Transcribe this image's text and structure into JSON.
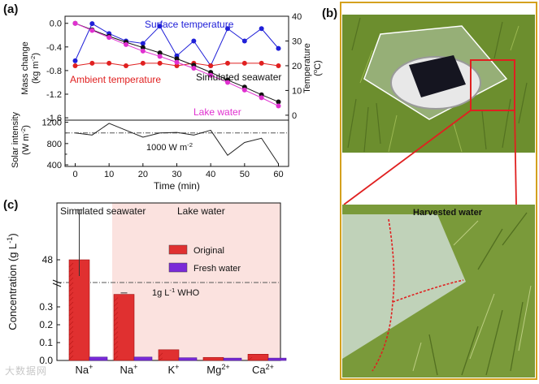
{
  "panel_labels": {
    "a": "(a)",
    "b": "(b)",
    "c": "(c)"
  },
  "watermark": "大数据网",
  "colors": {
    "surface": "#2020d8",
    "ambient": "#e02020",
    "seawater": "#111111",
    "lake": "#e030d0",
    "solar": "#222222",
    "bar_original": "#e03030",
    "bar_fresh": "#7a2ad8",
    "seawater_bg": "#ffffff",
    "lake_bg": "#fbe2df",
    "border": "#d4a11e",
    "grass": "#6c8e2e"
  },
  "chart_data": [
    {
      "id": "a",
      "type": "line",
      "x": [
        0,
        5,
        10,
        15,
        20,
        25,
        30,
        35,
        40,
        45,
        50,
        55,
        60
      ],
      "xlabel": "Time (min)",
      "xticks": [
        0,
        10,
        20,
        30,
        40,
        50,
        60
      ],
      "xlim": [
        -3,
        63
      ],
      "mass": {
        "ylabel": [
          "Mass change",
          "(kg m",
          "-2",
          ")"
        ],
        "ylim": [
          -1.64,
          0.12
        ],
        "yticks": [
          0.0,
          -0.4,
          -0.8,
          -1.2,
          -1.6
        ],
        "ytick_labels": [
          "0.0",
          "-0.4",
          "-0.8",
          "-1.2",
          "-1.6"
        ],
        "series": [
          {
            "name": "Simulated seawater",
            "color_key": "seawater",
            "values": [
              0.0,
              -0.11,
              -0.22,
              -0.32,
              -0.41,
              -0.5,
              -0.6,
              -0.71,
              -0.83,
              -0.96,
              -1.08,
              -1.21,
              -1.33
            ]
          },
          {
            "name": "Lake water",
            "color_key": "lake",
            "values": [
              0.0,
              -0.12,
              -0.24,
              -0.36,
              -0.47,
              -0.56,
              -0.66,
              -0.76,
              -0.88,
              -1.0,
              -1.13,
              -1.26,
              -1.4
            ]
          }
        ]
      },
      "temperature": {
        "ylabel": [
          "Temperature",
          "(",
          "o",
          "C)"
        ],
        "ylim": [
          -2,
          40
        ],
        "yticks": [
          0,
          10,
          20,
          30,
          40
        ],
        "series": [
          {
            "name": "Surface temperature",
            "color_key": "surface",
            "values": [
              22,
              37,
              33,
              30,
              29,
              36,
              24,
              30,
              20,
              35,
              30,
              35,
              27
            ]
          },
          {
            "name": "Ambient temperature",
            "color_key": "ambient",
            "values": [
              20,
              21,
              21,
              20,
              21,
              21,
              20,
              21,
              20,
              21,
              21,
              21,
              20
            ]
          }
        ]
      },
      "solar": {
        "ylabel": [
          "Solar intensity",
          "(W m",
          "-2",
          ")"
        ],
        "ylim": [
          370,
          1240
        ],
        "yticks": [
          400,
          800,
          1200
        ],
        "y_minor_ticks": [
          600,
          1000
        ],
        "x": [
          0,
          5,
          10,
          15,
          20,
          25,
          30,
          35,
          40,
          45,
          50,
          55,
          60
        ],
        "values": [
          1000,
          960,
          1180,
          1050,
          920,
          1000,
          1010,
          960,
          1050,
          580,
          820,
          900,
          420
        ],
        "reference": {
          "value": 1000,
          "label": "1000 W m",
          "label_sup": "-2"
        }
      },
      "annotations": {
        "surface": "Surface temperature",
        "ambient": "Ambient temperature",
        "seawater": "Simulated seawater",
        "lake": "Lake water"
      }
    },
    {
      "id": "c",
      "type": "bar",
      "ylabel": [
        "Concentration (g L",
        "-1",
        ")"
      ],
      "regions": {
        "seawater": "Simulated seawater",
        "lake": "Lake water"
      },
      "categories": [
        {
          "base": "Na",
          "sup": "+"
        },
        {
          "base": "Na",
          "sup": "+"
        },
        {
          "base": "K",
          "sup": "+"
        },
        {
          "base": "Mg",
          "sup": "2+"
        },
        {
          "base": "Ca",
          "sup": "2+"
        }
      ],
      "series": [
        {
          "name": "Original",
          "color_key": "bar_original",
          "values": [
            48,
            0.37,
            0.06,
            0.017,
            0.035
          ]
        },
        {
          "name": "Fresh water",
          "color_key": "bar_fresh",
          "values": [
            0.01,
            0.01,
            0.006,
            0.004,
            0.004
          ]
        }
      ],
      "lower_axis": {
        "ylim": [
          0,
          0.4
        ],
        "yticks": [
          0.0,
          0.1,
          0.2,
          0.3
        ],
        "ytick_labels": [
          "0.0",
          "0.1",
          "0.2",
          "0.3"
        ]
      },
      "upper_axis": {
        "ylim": [
          47,
          50.5
        ],
        "yticks": [
          48
        ],
        "ytick_labels": [
          "48"
        ]
      },
      "reference": {
        "label": "1g L",
        "label_sup": "-1",
        "suffix": "WHO"
      }
    }
  ],
  "photo_label": "Harvested water"
}
